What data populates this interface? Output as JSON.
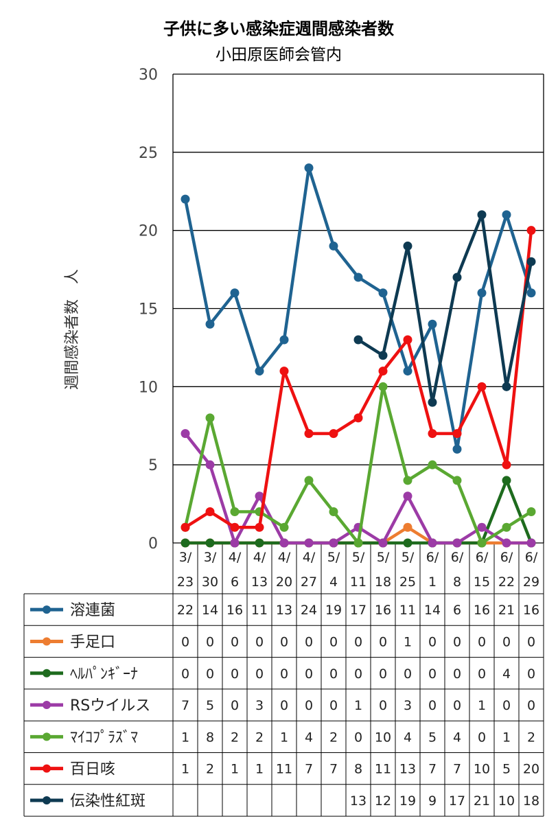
{
  "chart_data": {
    "type": "line",
    "title": "子供に多い感染症週間感染者数",
    "subtitle": "小田原医師会管内",
    "ylabel": "週間感染者数　人",
    "ylim": [
      0,
      30
    ],
    "yticks": [
      0,
      5,
      10,
      15,
      20,
      25,
      30
    ],
    "grid": true,
    "legend": "table-below",
    "x": [
      [
        "3/",
        "23"
      ],
      [
        "3/",
        "30"
      ],
      [
        "4/",
        "6"
      ],
      [
        "4/",
        "13"
      ],
      [
        "4/",
        "20"
      ],
      [
        "4/",
        "27"
      ],
      [
        "5/",
        "4"
      ],
      [
        "5/",
        "11"
      ],
      [
        "5/",
        "18"
      ],
      [
        "5/",
        "25"
      ],
      [
        "6/",
        "1"
      ],
      [
        "6/",
        "8"
      ],
      [
        "6/",
        "15"
      ],
      [
        "6/",
        "22"
      ],
      [
        "6/",
        "29"
      ]
    ],
    "series": [
      {
        "name": "溶連菌",
        "color": "#1f6391",
        "values": [
          22,
          14,
          16,
          11,
          13,
          24,
          19,
          17,
          16,
          11,
          14,
          6,
          16,
          21,
          16
        ]
      },
      {
        "name": "手足口",
        "color": "#ed7d31",
        "values": [
          0,
          0,
          0,
          0,
          0,
          0,
          0,
          0,
          0,
          1,
          0,
          0,
          0,
          0,
          0
        ]
      },
      {
        "name": "ﾍﾙﾊﾟﾝｷﾞｰﾅ",
        "color": "#1e6b1e",
        "values": [
          0,
          0,
          0,
          0,
          0,
          0,
          0,
          0,
          0,
          0,
          0,
          0,
          0,
          4,
          0
        ]
      },
      {
        "name": "RSウイルス",
        "color": "#9c3ba6",
        "values": [
          7,
          5,
          0,
          3,
          0,
          0,
          0,
          1,
          0,
          3,
          0,
          0,
          1,
          0,
          0
        ]
      },
      {
        "name": "ﾏｲｺﾌﾟﾗｽﾞﾏ",
        "color": "#5aa832",
        "values": [
          1,
          8,
          2,
          2,
          1,
          4,
          2,
          0,
          10,
          4,
          5,
          4,
          0,
          1,
          2
        ]
      },
      {
        "name": "百日咳",
        "color": "#ee1111",
        "values": [
          1,
          2,
          1,
          1,
          11,
          7,
          7,
          8,
          11,
          13,
          7,
          7,
          10,
          5,
          20
        ]
      },
      {
        "name": "伝染性紅斑",
        "color": "#0e3a52",
        "values": [
          null,
          null,
          null,
          null,
          null,
          null,
          null,
          13,
          12,
          19,
          9,
          17,
          21,
          10,
          18
        ]
      }
    ]
  }
}
